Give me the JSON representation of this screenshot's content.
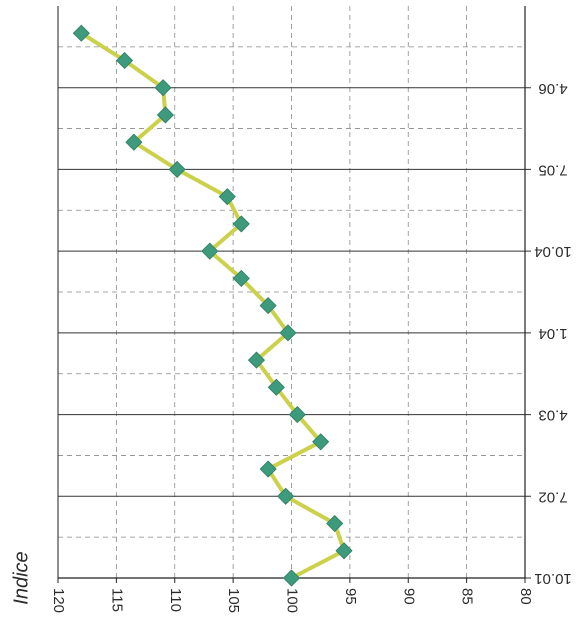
{
  "chart_data": {
    "type": "line",
    "orientation": "rotated-90",
    "ylabel": "Indice",
    "ylim": [
      80,
      120
    ],
    "y_ticks": [
      "120",
      "115",
      "110",
      "105",
      "100",
      "95",
      "90",
      "85",
      "80"
    ],
    "x_tick_labels": [
      "10.01",
      "7.02",
      "4.03",
      "1.04",
      "10.04",
      "7.05",
      "4.06"
    ],
    "x_tick_positions": [
      0,
      3,
      6,
      9,
      12,
      15,
      18
    ],
    "x": [
      0,
      1,
      2,
      3,
      4,
      5,
      6,
      7,
      8,
      9,
      10,
      11,
      12,
      13,
      14,
      15,
      16,
      17,
      18,
      19,
      20
    ],
    "series": [
      {
        "values": [
          100,
          95.5,
          96.3,
          100.5,
          102,
          97.5,
          99.5,
          101.3,
          103,
          100.3,
          102,
          104.3,
          107,
          104.3,
          105.5,
          109.8,
          113.5,
          110.8,
          111,
          114.3,
          118
        ]
      }
    ],
    "grid": true,
    "colors": {
      "line": "#cbd14a",
      "marker": "#3d9a7c",
      "grid": "#8a8a8a",
      "axis": "#222222"
    }
  }
}
